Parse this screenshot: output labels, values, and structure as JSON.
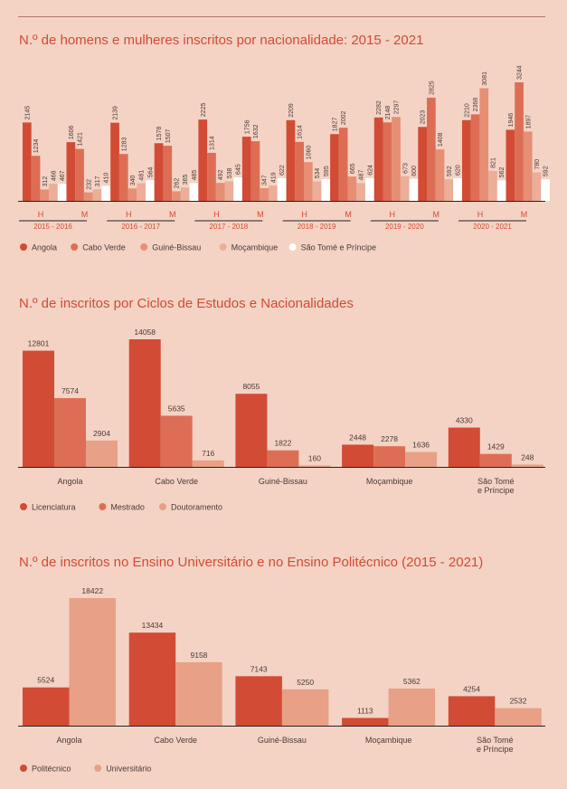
{
  "colors": {
    "background": "#f4d3c5",
    "text": "#4a3a35",
    "accent": "#d24b35"
  },
  "chart_data": [
    {
      "type": "bar",
      "title": "N.º de homens e mulheres inscritos por nacionalidade: 2015 - 2021",
      "years": [
        "2015 - 2016",
        "2016 - 2017",
        "2017 - 2018",
        "2018 - 2019",
        "2019 - 2020",
        "2020 - 2021"
      ],
      "subcategories": [
        "H",
        "M"
      ],
      "series": [
        {
          "name": "Angola",
          "color": "#d24b35",
          "values": [
            2145,
            1606,
            2139,
            1578,
            2225,
            1756,
            2209,
            1827,
            2282,
            2023,
            2210,
            1946
          ]
        },
        {
          "name": "Cabo Verde",
          "color": "#dd6e55",
          "values": [
            1234,
            1421,
            1283,
            1507,
            1314,
            1632,
            1614,
            2002,
            2148,
            2825,
            2368,
            3244
          ]
        },
        {
          "name": "Guiné-Bissau",
          "color": "#e68f75",
          "values": [
            312,
            232,
            340,
            262,
            492,
            347,
            1060,
            665,
            2297,
            1408,
            3081,
            1897
          ]
        },
        {
          "name": "Moçambique",
          "color": "#ecae98",
          "values": [
            468,
            317,
            481,
            365,
            538,
            419,
            534,
            487,
            673,
            592,
            821,
            780
          ]
        },
        {
          "name": "São Tomé e Príncipe",
          "color": "#ffffff",
          "values": [
            467,
            410,
            564,
            485,
            645,
            622,
            595,
            624,
            600,
            620,
            562,
            592
          ]
        }
      ],
      "legend": "bottom-left",
      "grid": false
    },
    {
      "type": "bar",
      "title": "N.º de inscritos por Ciclos de Estudos e Nacionalidades",
      "categories": [
        "Angola",
        "Cabo Verde",
        "Guiné-Bissau",
        "Moçambique",
        "São Tomé\ne Príncipe"
      ],
      "series": [
        {
          "name": "Licenciatura",
          "color": "#d24b35",
          "values": [
            12801,
            14058,
            8055,
            2448,
            4330
          ]
        },
        {
          "name": "Mestrado",
          "color": "#dd6e55",
          "values": [
            7574,
            5635,
            1822,
            2278,
            1429
          ]
        },
        {
          "name": "Doutoramento",
          "color": "#e8a087",
          "values": [
            2904,
            716,
            160,
            1636,
            248
          ]
        }
      ],
      "legend": "bottom-left",
      "grid": false
    },
    {
      "type": "bar",
      "title": "N.º de inscritos no Ensino Universitário e no Ensino Politécnico (2015 - 2021)",
      "categories": [
        "Angola",
        "Cabo Verde",
        "Guiné-Bissau",
        "Moçambique",
        "São Tomé\ne Príncipe"
      ],
      "series": [
        {
          "name": "Politécnico",
          "color": "#d24b35",
          "values": [
            5524,
            13434,
            7143,
            1113,
            4254
          ]
        },
        {
          "name": "Universitário",
          "color": "#e8a087",
          "values": [
            18422,
            9158,
            5250,
            5362,
            2532
          ]
        }
      ],
      "legend": "bottom-left",
      "grid": false
    }
  ]
}
